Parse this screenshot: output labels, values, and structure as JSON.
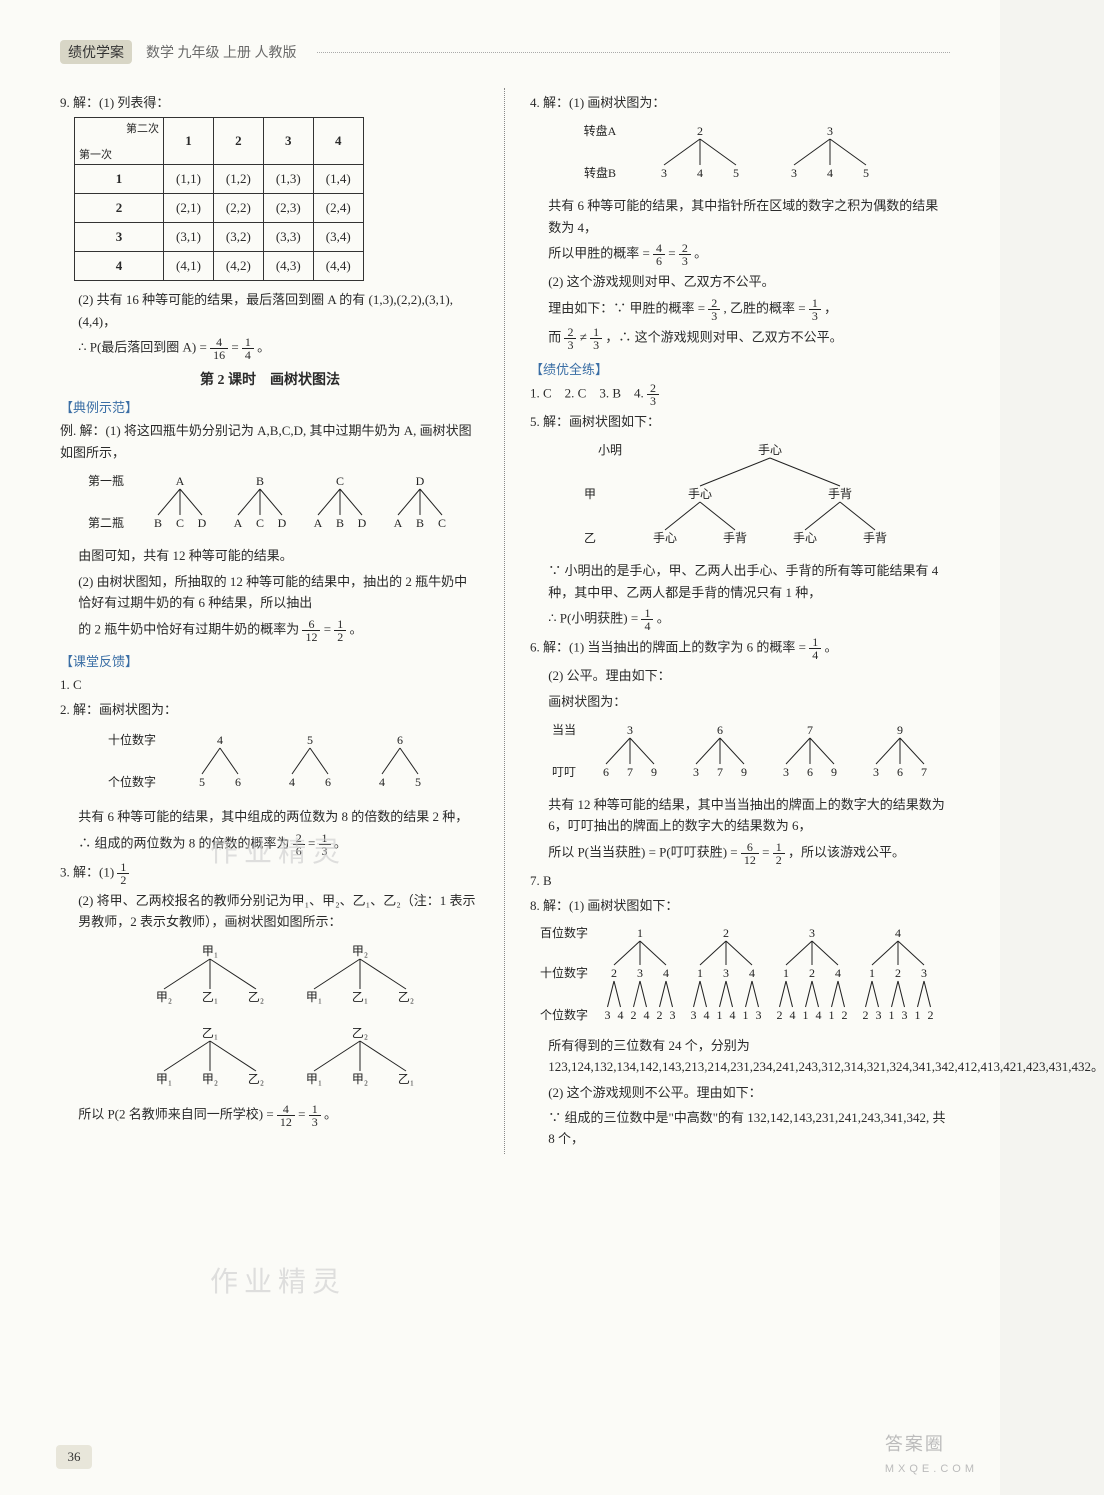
{
  "header": {
    "badge": "绩优学案",
    "subtitle": "数学 九年级 上册 人教版"
  },
  "pageNumber": "36",
  "watermark_big": "答案圈",
  "watermark_small": "MXQE.COM",
  "wm_mid1": "作业精灵",
  "wm_mid2": "作业精灵",
  "left": {
    "q9_head": "9. 解：(1) 列表得：",
    "table": {
      "diag_a": "第二次",
      "diag_b": "第一次",
      "cols": [
        "1",
        "2",
        "3",
        "4"
      ],
      "rows": [
        [
          "1",
          "(1,1)",
          "(1,2)",
          "(1,3)",
          "(1,4)"
        ],
        [
          "2",
          "(2,1)",
          "(2,2)",
          "(2,3)",
          "(2,4)"
        ],
        [
          "3",
          "(3,1)",
          "(3,2)",
          "(3,3)",
          "(3,4)"
        ],
        [
          "4",
          "(4,1)",
          "(4,2)",
          "(4,3)",
          "(4,4)"
        ]
      ]
    },
    "q9_b1": "(2) 共有 16 种等可能的结果，最后落回到圈 A 的有 (1,3),(2,2),(3,1),(4,4)，",
    "q9_b2a": "∴ P(最后落回到圈 A) = ",
    "frac1": {
      "n": "4",
      "d": "16"
    },
    "eq": " = ",
    "frac2": {
      "n": "1",
      "d": "4"
    },
    "period": "。",
    "lesson_title": "第 2 课时　画树状图法",
    "sec1": "【典例示范】",
    "ex_l1": "例. 解：(1) 将这四瓶牛奶分别记为 A,B,C,D, 其中过期牛奶为 A, 画树状图如图所示，",
    "tree1": {
      "row1_label": "第一瓶",
      "row2_label": "第二瓶",
      "tops": [
        "A",
        "B",
        "C",
        "D"
      ],
      "children": [
        [
          "B",
          "C",
          "D"
        ],
        [
          "A",
          "C",
          "D"
        ],
        [
          "A",
          "B",
          "D"
        ],
        [
          "A",
          "B",
          "C"
        ]
      ]
    },
    "ex_l2": "由图可知，共有 12 种等可能的结果。",
    "ex_l3": "(2) 由树状图知，所抽取的 12 种等可能的结果中，抽出的 2 瓶牛奶中恰好有过期牛奶的有 6 种结果，所以抽出",
    "ex_l4a": "的 2 瓶牛奶中恰好有过期牛奶的概率为 ",
    "ex_frac1": {
      "n": "6",
      "d": "12"
    },
    "ex_eq": " = ",
    "ex_frac2": {
      "n": "1",
      "d": "2"
    },
    "ex_period": "。",
    "sec2": "【课堂反馈】",
    "a1": "1. C",
    "a2_head": "2. 解：画树状图为：",
    "tree2": {
      "row1_label": "十位数字",
      "row2_label": "个位数字",
      "tops": [
        "4",
        "5",
        "6"
      ],
      "children": [
        [
          "5",
          "6"
        ],
        [
          "4",
          "6"
        ],
        [
          "4",
          "5"
        ]
      ]
    },
    "a2_l1": "共有 6 种等可能的结果，其中组成的两位数为 8 的倍数的结果 2 种，",
    "a2_l2a": "∴ 组成的两位数为 8 的倍数的概率为 ",
    "a2_f1": {
      "n": "2",
      "d": "6"
    },
    "a2_eq": " = ",
    "a2_f2": {
      "n": "1",
      "d": "3"
    },
    "a2_period": "。",
    "a3_head": "3. 解：(1) ",
    "a3_f": {
      "n": "1",
      "d": "2"
    },
    "a3_l1": "(2) 将甲、乙两校报名的教师分别记为甲₁、甲₂、乙₁、乙₂（注：1 表示男教师，2 表示女教师），画树状图如图所示：",
    "tree3": {
      "tops": [
        "甲₁",
        "甲₂"
      ],
      "children": [
        [
          "甲₂",
          "乙₁",
          "乙₂"
        ],
        [
          "甲₁",
          "乙₁",
          "乙₂"
        ]
      ]
    },
    "tree3b": {
      "tops": [
        "乙₁",
        "乙₂"
      ],
      "children": [
        [
          "甲₁",
          "甲₂",
          "乙₂"
        ],
        [
          "甲₁",
          "甲₂",
          "乙₁"
        ]
      ]
    },
    "a3_l2a": "所以 P(2 名教师来自同一所学校) = ",
    "a3_f1": {
      "n": "4",
      "d": "12"
    },
    "a3_eq": " = ",
    "a3_f2": {
      "n": "1",
      "d": "3"
    },
    "a3_period": "。"
  },
  "right": {
    "q4_head": "4. 解：(1) 画树状图为：",
    "tree4": {
      "row1_label": "转盘A",
      "row2_label": "转盘B",
      "tops": [
        "2",
        "3"
      ],
      "children": [
        [
          "3",
          "4",
          "5"
        ],
        [
          "3",
          "4",
          "5"
        ]
      ]
    },
    "q4_l1": "共有 6 种等可能的结果，其中指针所在区域的数字之积为偶数的结果数为 4，",
    "q4_l2a": "所以甲胜的概率 = ",
    "q4_f1": {
      "n": "4",
      "d": "6"
    },
    "q4_eq": " = ",
    "q4_f2": {
      "n": "2",
      "d": "3"
    },
    "q4_period": "。",
    "q4_l3": "(2) 这个游戏规则对甲、乙双方不公平。",
    "q4_l4a": "理由如下：∵ 甲胜的概率 = ",
    "q4_f3": {
      "n": "2",
      "d": "3"
    },
    "q4_mid": ", 乙胜的概率 = ",
    "q4_f4": {
      "n": "1",
      "d": "3"
    },
    "q4_comma": "，",
    "q4_l5a": "而 ",
    "q4_f5": {
      "n": "2",
      "d": "3"
    },
    "q4_ne": " ≠ ",
    "q4_f6": {
      "n": "1",
      "d": "3"
    },
    "q4_l5b": "，∴ 这个游戏规则对甲、乙双方不公平。",
    "sec3": "【绩优全练】",
    "ans_row": "1. C　2. C　3. B　4. ",
    "ans4_f": {
      "n": "2",
      "d": "3"
    },
    "q5_head": "5. 解：画树状图如下：",
    "tree5": {
      "top_label": "小明",
      "top": "手心",
      "mid_label": "甲",
      "mids": [
        "手心",
        "手背"
      ],
      "bot_label": "乙",
      "bots": [
        [
          "手心",
          "手背"
        ],
        [
          "手心",
          "手背"
        ]
      ]
    },
    "q5_l1": "∵ 小明出的是手心，甲、乙两人出手心、手背的所有等可能结果有 4 种，其中甲、乙两人都是手背的情况只有 1 种，",
    "q5_l2a": "∴ P(小明获胜) = ",
    "q5_f": {
      "n": "1",
      "d": "4"
    },
    "q5_period": "。",
    "q6_head_a": "6. 解：(1) 当当抽出的牌面上的数字为 6 的概率 = ",
    "q6_f0": {
      "n": "1",
      "d": "4"
    },
    "q6_period0": "。",
    "q6_l1": "(2) 公平。理由如下：",
    "q6_l2": "画树状图为：",
    "tree6": {
      "row1_label": "当当",
      "row2_label": "叮叮",
      "tops": [
        "3",
        "6",
        "7",
        "9"
      ],
      "children": [
        [
          "6",
          "7",
          "9"
        ],
        [
          "3",
          "7",
          "9"
        ],
        [
          "3",
          "6",
          "9"
        ],
        [
          "3",
          "6",
          "7"
        ]
      ]
    },
    "q6_l3": "共有 12 种等可能的结果，其中当当抽出的牌面上的数字大的结果数为 6，叮叮抽出的牌面上的数字大的结果数为 6，",
    "q6_l4a": "所以 P(当当获胜) = P(叮叮获胜) = ",
    "q6_f1": {
      "n": "6",
      "d": "12"
    },
    "q6_eq": " = ",
    "q6_f2": {
      "n": "1",
      "d": "2"
    },
    "q6_l4b": "，所以该游戏公平。",
    "a7": "7. B",
    "q8_head": "8. 解：(1) 画树状图如下：",
    "tree8": {
      "r1_label": "百位数字",
      "r2_label": "十位数字",
      "r3_label": "个位数字",
      "r1": [
        "1",
        "2",
        "3",
        "4"
      ],
      "r2": [
        [
          "2",
          "3",
          "4"
        ],
        [
          "1",
          "3",
          "4"
        ],
        [
          "1",
          "2",
          "4"
        ],
        [
          "1",
          "2",
          "3"
        ]
      ],
      "r3": [
        [
          "3",
          "4",
          "2",
          "4",
          "2",
          "3"
        ],
        [
          "3",
          "4",
          "1",
          "4",
          "1",
          "3"
        ],
        [
          "2",
          "4",
          "1",
          "4",
          "1",
          "2"
        ],
        [
          "2",
          "3",
          "1",
          "3",
          "1",
          "2"
        ]
      ]
    },
    "q8_l1": "所有得到的三位数有 24 个，分别为 123,124,132,134,142,143,213,214,231,234,241,243,312,314,321,324,341,342,412,413,421,423,431,432。",
    "q8_l2": "(2) 这个游戏规则不公平。理由如下：",
    "q8_l3": "∵ 组成的三位数中是\"中高数\"的有 132,142,143,231,241,243,341,342, 共 8 个，"
  }
}
